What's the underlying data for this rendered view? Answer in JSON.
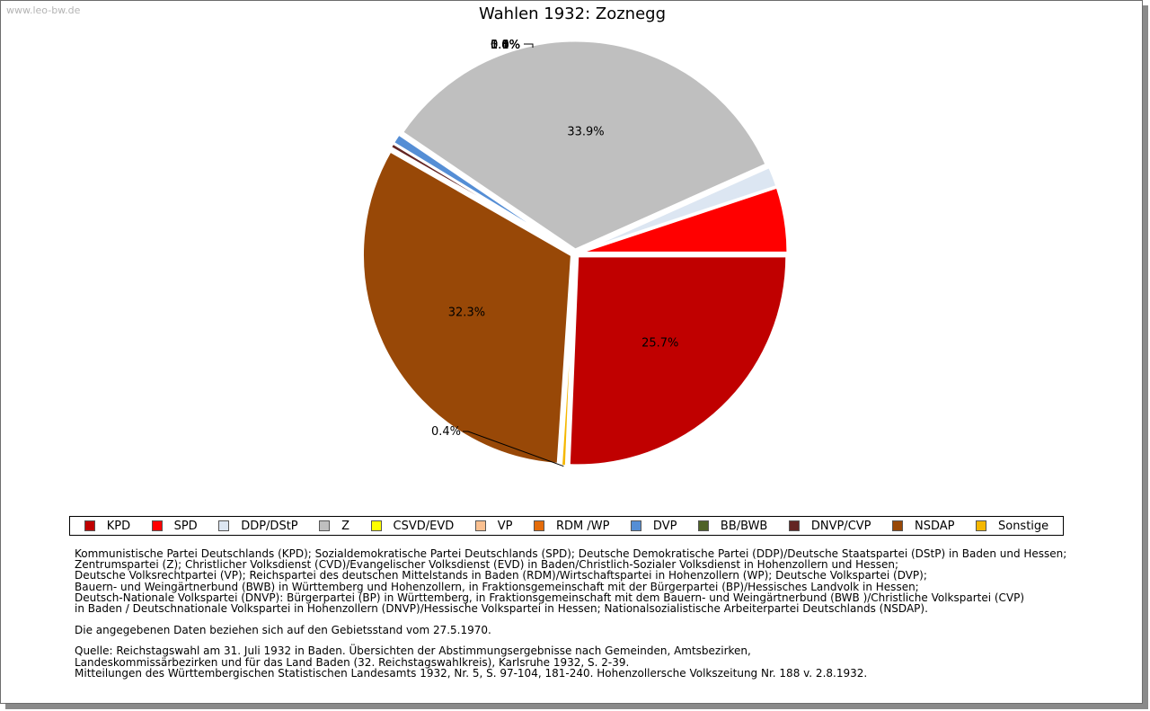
{
  "watermark": "www.leo-bw.de",
  "chart_data": {
    "type": "pie",
    "title": "Wahlen 1932: Zoznegg",
    "slices": [
      {
        "name": "KPD",
        "value": 25.7,
        "label": "25.7%",
        "color": "#c00000"
      },
      {
        "name": "Sonstige",
        "value": 0.4,
        "label": "0.4%",
        "color": "#f5b700"
      },
      {
        "name": "NSDAP",
        "value": 32.3,
        "label": "32.3%",
        "color": "#984807"
      },
      {
        "name": "DNVP/CVP",
        "value": 0.4,
        "label": "0.4%",
        "color": "#632523"
      },
      {
        "name": "BB/BWB",
        "value": 0.0,
        "label": "0.0%",
        "color": "#4f6228"
      },
      {
        "name": "DVP",
        "value": 0.8,
        "label": "0.8%",
        "color": "#558ed5"
      },
      {
        "name": "RDM /WP",
        "value": 0.0,
        "label": "0.0%",
        "color": "#e46c0a"
      },
      {
        "name": "VP",
        "value": 0.0,
        "label": "0.0%",
        "color": "#fac090"
      },
      {
        "name": "CSVD/EVD",
        "value": 0.0,
        "label": "0.0%",
        "color": "#ffff00"
      },
      {
        "name": "Z",
        "value": 33.9,
        "label": "33.9%",
        "color": "#bfbfbf"
      },
      {
        "name": "DDP/DStP",
        "value": 1.6,
        "label": "1.6%",
        "color": "#dce6f2"
      },
      {
        "name": "SPD",
        "value": 5.1,
        "label": "5.1%",
        "color": "#ff0000"
      }
    ],
    "legend": [
      {
        "name": "KPD",
        "color": "#c00000"
      },
      {
        "name": "SPD",
        "color": "#ff0000"
      },
      {
        "name": "DDP/DStP",
        "color": "#dce6f2"
      },
      {
        "name": "Z",
        "color": "#bfbfbf"
      },
      {
        "name": "CSVD/EVD",
        "color": "#ffff00"
      },
      {
        "name": "VP",
        "color": "#fac090"
      },
      {
        "name": "RDM /WP",
        "color": "#e46c0a"
      },
      {
        "name": "DVP",
        "color": "#558ed5"
      },
      {
        "name": "BB/BWB",
        "color": "#4f6228"
      },
      {
        "name": "DNVP/CVP",
        "color": "#632523"
      },
      {
        "name": "NSDAP",
        "color": "#984807"
      },
      {
        "name": "Sonstige",
        "color": "#f5b700"
      }
    ],
    "legend_position": "bottom"
  },
  "notes": {
    "lines": [
      "Kommunistische Partei Deutschlands (KPD); Sozialdemokratische Partei Deutschlands (SPD); Deutsche Demokratische Partei (DDP)/Deutsche Staatspartei (DStP) in Baden und Hessen;",
      "Zentrumspartei (Z); Christlicher Volksdienst (CVD)/Evangelischer Volksdienst (EVD) in Baden/Christlich-Sozialer Volksdienst in Hohenzollern und Hessen;",
      "Deutsche Volksrechtpartei (VP); Reichspartei des deutschen Mittelstands in Baden (RDM)/Wirtschaftspartei in Hohenzollern (WP); Deutsche Volkspartei (DVP);",
      "Bauern- und Weingärtnerbund (BWB) in Württemberg und Hohenzollern, in Fraktionsgemeinschaft mit der Bürgerpartei (BP)/Hessisches Landvolk in Hessen;",
      "Deutsch-Nationale Volkspartei (DNVP): Bürgerpartei (BP) in Württemberg, in Fraktionsgemeinschaft mit dem Bauern- und Weingärtnerbund (BWB )/Christliche Volkspartei (CVP)",
      "in Baden / Deutschnationale Volkspartei in Hohenzollern (DNVP)/Hessische Volkspartei in Hessen; Nationalsozialistische Arbeiterpartei Deutschlands (NSDAP)."
    ],
    "territory": "Die angegebenen Daten beziehen sich auf den Gebietsstand vom 27.5.1970.",
    "source_lines": [
      "Quelle: Reichstagswahl am 31. Juli 1932 in Baden. Übersichten der Abstimmungsergebnisse nach Gemeinden, Amtsbezirken,",
      "Landeskommissärbezirken und für das Land Baden (32. Reichstagswahlkreis), Karlsruhe 1932, S. 2-39.",
      "Mitteilungen des Württembergischen Statistischen Landesamts 1932, Nr. 5, S. 97-104, 181-240. Hohenzollersche Volkszeitung Nr. 188 v. 2.8.1932."
    ]
  }
}
